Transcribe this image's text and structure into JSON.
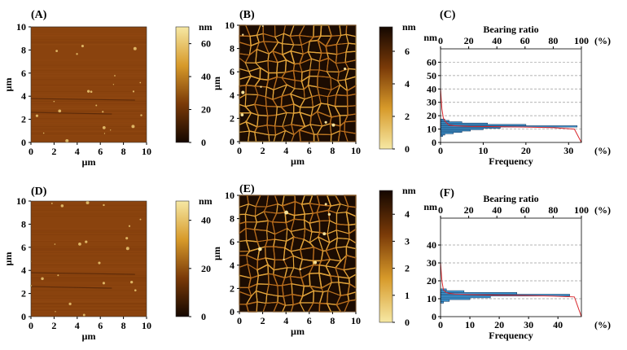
{
  "panels": [
    {
      "id": "A",
      "label": "(A)",
      "kind": "afm",
      "xlabel": "µm",
      "ylabel": "µm",
      "xticks": [
        "0",
        "2",
        "4",
        "6",
        "8",
        "10"
      ],
      "yticks": [
        "0",
        "2",
        "4",
        "6",
        "8",
        "10"
      ],
      "scale_unit": "nm",
      "scale_ticks": [
        "0",
        "20",
        "40",
        "60"
      ],
      "scale_colors": [
        "#140700",
        "#7a3a08",
        "#d79a2a",
        "#f6e8a4"
      ]
    },
    {
      "id": "B",
      "label": "(B)",
      "kind": "network",
      "xlabel": "µm",
      "ylabel": "µm",
      "xticks": [
        "0",
        "2",
        "4",
        "6",
        "8",
        "10"
      ],
      "yticks": [
        "0",
        "2",
        "4",
        "6",
        "8",
        "10"
      ],
      "scale_unit": "nm",
      "scale_ticks": [
        "0",
        "2",
        "4",
        "6"
      ],
      "scale_colors": [
        "#f6e8a4",
        "#d79a2a",
        "#7a3a08",
        "#140700"
      ]
    },
    {
      "id": "C",
      "label": "(C)",
      "kind": "histogram",
      "unit": "nm",
      "top_title": "Bearing ratio",
      "bottom_title": "Frequency",
      "percent": "(%)",
      "top_ticks": [
        "0",
        "20",
        "40",
        "60",
        "80",
        "100"
      ],
      "bottom_ticks": [
        "0",
        "10",
        "20",
        "30"
      ],
      "yticks": [
        "0",
        "10",
        "20",
        "30",
        "40",
        "50",
        "60"
      ]
    },
    {
      "id": "D",
      "label": "(D)",
      "kind": "afm",
      "xlabel": "µm",
      "ylabel": "µm",
      "xticks": [
        "0",
        "2",
        "4",
        "6",
        "8",
        "10"
      ],
      "yticks": [
        "0",
        "2",
        "4",
        "6",
        "8",
        "10"
      ],
      "scale_unit": "nm",
      "scale_ticks": [
        "0",
        "20",
        "40"
      ],
      "scale_colors": [
        "#140700",
        "#7a3a08",
        "#d79a2a",
        "#f6e8a4"
      ]
    },
    {
      "id": "E",
      "label": "(E)",
      "kind": "network",
      "xlabel": "µm",
      "ylabel": "µm",
      "xticks": [
        "0",
        "2",
        "4",
        "6",
        "8",
        "10"
      ],
      "yticks": [
        "0",
        "2",
        "4",
        "6",
        "8",
        "10"
      ],
      "scale_unit": "nm",
      "scale_ticks": [
        "0",
        "1",
        "2",
        "3",
        "4"
      ],
      "scale_colors": [
        "#f6e8a4",
        "#d79a2a",
        "#7a3a08",
        "#140700"
      ]
    },
    {
      "id": "F",
      "label": "(F)",
      "kind": "histogram",
      "unit": "nm",
      "top_title": "Bearing ratio",
      "bottom_title": "Frequency",
      "percent": "(%)",
      "top_ticks": [
        "0",
        "20",
        "40",
        "60",
        "80",
        "100"
      ],
      "bottom_ticks": [
        "0",
        "10",
        "20",
        "30",
        "40"
      ],
      "yticks": [
        "0",
        "10",
        "20",
        "30",
        "40"
      ]
    }
  ],
  "chart_data": [
    {
      "panel": "C",
      "type": "bar",
      "orientation": "horizontal",
      "ylabel": "nm",
      "xlabel": "Frequency",
      "x_unit": "%",
      "ylim": [
        0,
        70
      ],
      "xlim": [
        0,
        33
      ],
      "bins_nm": [
        5,
        6,
        7,
        8,
        9,
        10,
        11,
        12,
        13,
        14,
        15,
        16,
        17
      ],
      "frequency_percent": [
        0.5,
        1,
        3,
        5,
        7,
        10,
        14,
        32,
        20,
        11,
        5,
        2,
        1
      ],
      "bearing_ratio_x": [
        0,
        1,
        2,
        4,
        6,
        10,
        20,
        40,
        60,
        80,
        95,
        100
      ],
      "bearing_ratio_nm": [
        40,
        25,
        18,
        15,
        13,
        12.5,
        12,
        11.8,
        11.5,
        11,
        10,
        0
      ],
      "bearing_xlim": [
        0,
        100
      ]
    },
    {
      "panel": "F",
      "type": "bar",
      "orientation": "horizontal",
      "ylabel": "nm",
      "xlabel": "Frequency",
      "x_unit": "%",
      "ylim": [
        0,
        55
      ],
      "xlim": [
        0,
        48
      ],
      "bins_nm": [
        8,
        9,
        10,
        11,
        12,
        13,
        14,
        15
      ],
      "frequency_percent": [
        1,
        3,
        10,
        17,
        44,
        26,
        8,
        2
      ],
      "bearing_ratio_x": [
        0,
        1,
        2,
        4,
        6,
        10,
        20,
        40,
        60,
        80,
        95,
        100
      ],
      "bearing_ratio_nm": [
        30,
        20,
        15,
        13.5,
        13,
        12.6,
        12.3,
        12,
        11.8,
        11.5,
        11,
        0
      ],
      "bearing_xlim": [
        0,
        100
      ]
    }
  ]
}
